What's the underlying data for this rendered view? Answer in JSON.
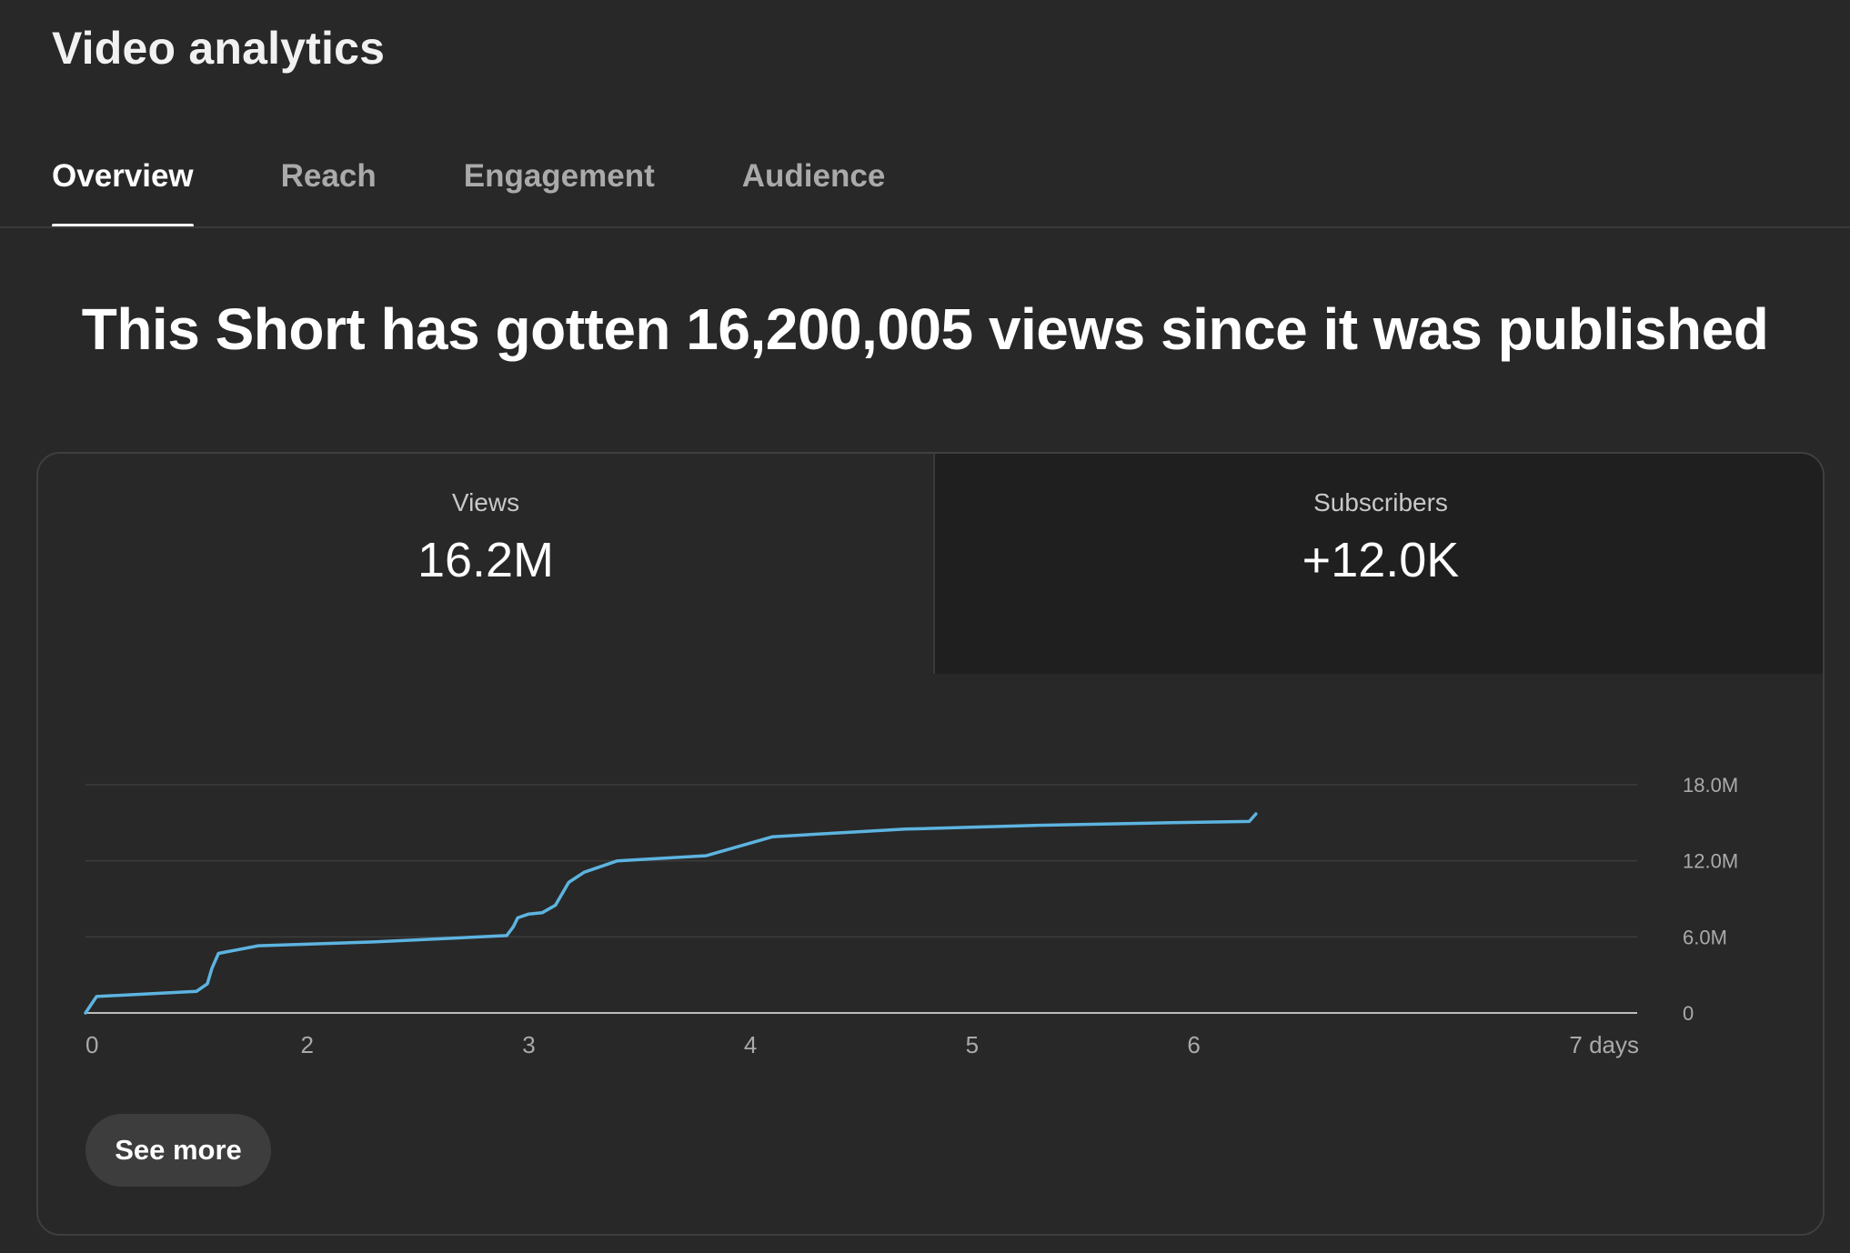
{
  "header": {
    "title": "Video analytics"
  },
  "tabs": [
    {
      "label": "Overview",
      "active": true
    },
    {
      "label": "Reach",
      "active": false
    },
    {
      "label": "Engagement",
      "active": false
    },
    {
      "label": "Audience",
      "active": false
    }
  ],
  "headline": "This Short has gotten 16,200,005 views since it was published",
  "metrics": {
    "views": {
      "label": "Views",
      "value": "16.2M",
      "selected": true
    },
    "subscribers": {
      "label": "Subscribers",
      "value": "+12.0K",
      "selected": false
    }
  },
  "chart_data": {
    "type": "line",
    "x_ticks": [
      "0",
      "2",
      "3",
      "4",
      "5",
      "6",
      "7 days"
    ],
    "y_ticks": [
      "18.0M",
      "12.0M",
      "6.0M",
      "0"
    ],
    "y_tick_values": [
      18000000,
      12000000,
      6000000,
      0
    ],
    "ylim": [
      0,
      18000000
    ],
    "xlim": [
      0,
      7
    ],
    "grid": true,
    "y_axis_side": "right",
    "line_color": "#5db4e0",
    "series": [
      {
        "x": [
          0,
          0.05,
          0.5,
          0.55,
          0.57,
          0.6,
          0.78,
          1.3,
          1.9,
          1.93,
          1.95,
          2.0,
          2.06,
          2.12,
          2.18,
          2.25,
          2.4,
          2.8,
          3.1,
          3.7,
          4.3,
          4.9,
          5.25,
          5.28
        ],
        "y": [
          0,
          1300000,
          1700000,
          2300000,
          3500000,
          4700000,
          5300000,
          5600000,
          6100000,
          6800000,
          7500000,
          7800000,
          7900000,
          8500000,
          10300000,
          11100000,
          12000000,
          12400000,
          13900000,
          14500000,
          14800000,
          15000000,
          15100000,
          15700000
        ]
      }
    ]
  },
  "buttons": {
    "see_more": "See more"
  }
}
